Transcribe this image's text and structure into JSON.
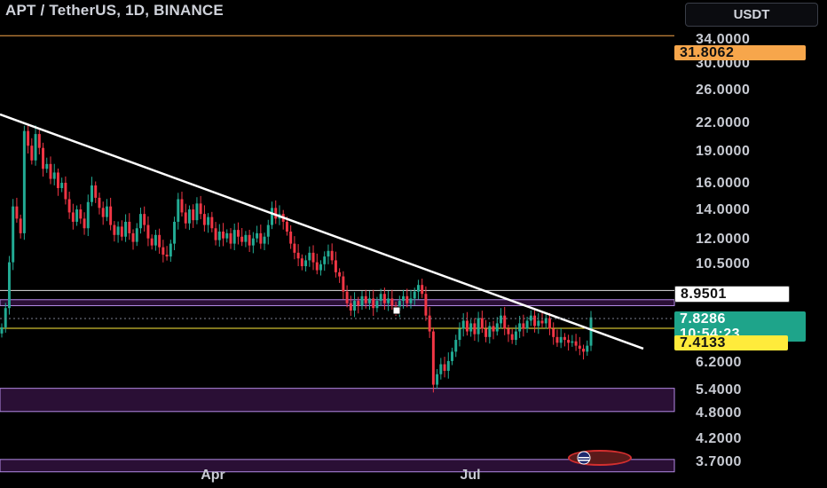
{
  "header": {
    "title": "APT / TetherUS, 1D, BINANCE",
    "currency_button": "USDT"
  },
  "price_tags": {
    "resistance_level": "31.8062",
    "horizontal_level": "8.9501",
    "last_price": "7.8286",
    "countdown": "10:54:23",
    "support_level": "7.4133"
  },
  "colors": {
    "up": "#22ab94",
    "down": "#f23645",
    "trendline": "#ffffff",
    "orange_line": "#f7a64b",
    "yellow_line": "#ffeb3b",
    "zone_fill": "#2a0f35",
    "zone_border": "#b48ae6"
  },
  "chart_data": {
    "type": "candlestick",
    "y_scale": "log",
    "ylim": [
      3.5,
      38
    ],
    "y_ticks": [
      "34.0000",
      "30.0000",
      "26.0000",
      "22.0000",
      "19.0000",
      "16.0000",
      "14.0000",
      "12.0000",
      "10.5000",
      "6.2000",
      "5.4000",
      "4.8000",
      "4.2000",
      "3.7000"
    ],
    "x_ticks": [
      "Apr",
      "Jul"
    ],
    "horizontal_lines": [
      {
        "price": 31.8062,
        "color": "orange"
      },
      {
        "price": 8.9501,
        "color": "white"
      },
      {
        "price": 7.4133,
        "color": "yellow"
      }
    ],
    "zones": [
      {
        "from": 8.3,
        "to": 8.55
      },
      {
        "from": 4.9,
        "to": 5.5
      },
      {
        "from": 3.63,
        "to": 3.86
      }
    ],
    "trendline": {
      "from": [
        0,
        21.5
      ],
      "to": [
        725,
        6.7
      ]
    },
    "closes": [
      7.45,
      8.2,
      10.3,
      13.6,
      12.8,
      11.9,
      19.8,
      18.4,
      17.1,
      19.5,
      18.2,
      16.4,
      16.8,
      15.6,
      16.1,
      14.9,
      15.3,
      14.1,
      13.2,
      12.6,
      13.4,
      12.8,
      12.2,
      13.9,
      15.1,
      14.2,
      13.5,
      12.9,
      13.6,
      12.4,
      11.8,
      12.3,
      11.7,
      12.6,
      11.9,
      11.4,
      12.2,
      13.1,
      12.4,
      11.6,
      11.2,
      11.8,
      11.1,
      10.7,
      10.6,
      11.3,
      12.6,
      14.1,
      13.2,
      12.5,
      13.4,
      12.7,
      13.8,
      13.1,
      12.4,
      12.9,
      12.2,
      11.5,
      12.0,
      11.6,
      11.9,
      11.3,
      12.1,
      11.7,
      11.4,
      11.8,
      11.2,
      11.6,
      11.9,
      11.3,
      11.7,
      12.4,
      13.5,
      12.8,
      13.1,
      12.6,
      12.0,
      11.3,
      10.8,
      10.5,
      10.1,
      10.4,
      10.8,
      10.3,
      9.9,
      10.2,
      10.6,
      10.9,
      10.4,
      9.8,
      9.6,
      8.9,
      8.4,
      8.1,
      8.5,
      8.3,
      8.7,
      8.4,
      8.6,
      8.2,
      8.5,
      8.8,
      8.4,
      8.6,
      8.3,
      8.1,
      8.5,
      8.7,
      8.4,
      8.6,
      8.9,
      9.2,
      8.8,
      7.9,
      7.3,
      5.6,
      5.9,
      6.2,
      6.0,
      6.3,
      6.6,
      7.0,
      7.4,
      7.7,
      7.3,
      7.6,
      7.2,
      7.8,
      7.4,
      7.1,
      7.5,
      7.3,
      7.6,
      7.9,
      7.4,
      7.2,
      7.0,
      7.3,
      7.6,
      7.4,
      7.7,
      7.9,
      7.5,
      7.7,
      7.6,
      7.8,
      7.4,
      7.1,
      6.9,
      7.1,
      7.0,
      6.9,
      6.95,
      6.8,
      6.7,
      6.6,
      6.8,
      7.83
    ]
  }
}
